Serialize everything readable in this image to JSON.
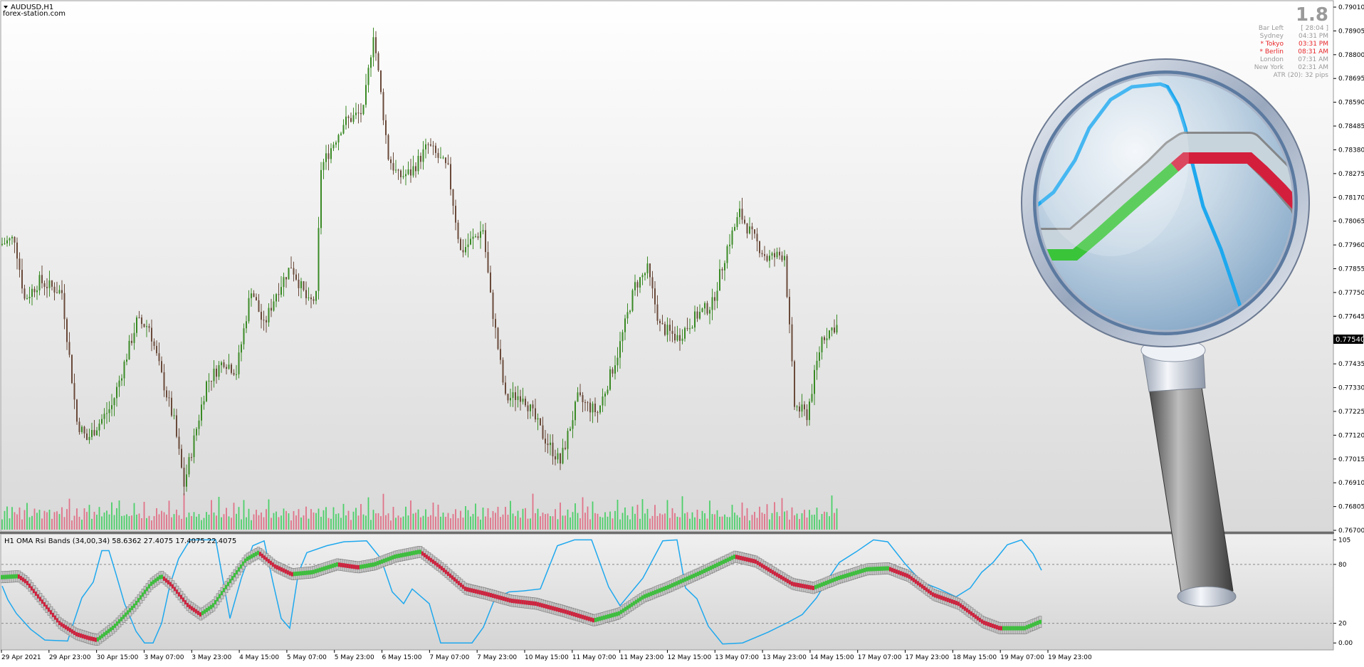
{
  "window": {
    "symbol_label": "AUDUSD,H1",
    "watermark": "forex-station.com"
  },
  "info_panel": {
    "big_value": "1.8",
    "rows": [
      {
        "label": "Bar Left",
        "value": "[ 28:04 ]",
        "color": "#9a9a9a"
      },
      {
        "label": "Sydney",
        "value": "04:31 PM",
        "color": "#9a9a9a"
      },
      {
        "label": "* Tokyo",
        "value": "03:31 PM",
        "color": "#e8262a"
      },
      {
        "label": "* Berlin",
        "value": "08:31 AM",
        "color": "#e8262a"
      },
      {
        "label": "London",
        "value": "07:31 AM",
        "color": "#9a9a9a"
      },
      {
        "label": "New York",
        "value": "02:31 AM",
        "color": "#9a9a9a"
      }
    ],
    "atr_text": "ATR (20): 32 pips"
  },
  "indicator": {
    "title": "H1 OMA Rsi Bands (34,00,34) 58.6362 27.4075 17.4075 22.4075"
  },
  "colors": {
    "bull_candle": "#3a8a25",
    "bear_candle": "#6a4a3a",
    "vol_up": "#33cc55",
    "vol_down": "#e0607a",
    "band_up": "#3ac43a",
    "band_down": "#d41f3c",
    "rsi_line": "#1ea8ee",
    "price_marker_bg": "#000000"
  },
  "chart_data": [
    {
      "type": "candlestick",
      "title": "AUDUSD,H1",
      "x_ticks": [
        "29 Apr 2021",
        "29 Apr 23:00",
        "30 Apr 15:00",
        "3 May 07:00",
        "3 May 23:00",
        "4 May 15:00",
        "5 May 07:00",
        "5 May 23:00",
        "6 May 15:00",
        "7 May 07:00",
        "7 May 23:00",
        "10 May 15:00",
        "11 May 07:00",
        "11 May 23:00",
        "12 May 15:00",
        "13 May 07:00",
        "13 May 23:00",
        "14 May 15:00",
        "17 May 07:00",
        "17 May 23:00",
        "18 May 15:00",
        "19 May 07:00",
        "19 May 23:00"
      ],
      "y_ticks": [
        "0.79010",
        "0.78905",
        "0.78800",
        "0.78695",
        "0.78590",
        "0.78485",
        "0.78380",
        "0.78275",
        "0.78170",
        "0.78065",
        "0.77960",
        "0.77855",
        "0.77750",
        "0.77645",
        "0.77540",
        "0.77435",
        "0.77330",
        "0.77225",
        "0.77120",
        "0.77015",
        "0.76910",
        "0.76805",
        "0.76700"
      ],
      "ylim": [
        0.767,
        0.7901
      ],
      "current_price": "0.77540",
      "anchors": [
        [
          0,
          0.7796
        ],
        [
          6,
          0.7799
        ],
        [
          10,
          0.7772
        ],
        [
          16,
          0.778
        ],
        [
          25,
          0.7775
        ],
        [
          31,
          0.7718
        ],
        [
          35,
          0.771
        ],
        [
          45,
          0.7725
        ],
        [
          55,
          0.7762
        ],
        [
          60,
          0.776
        ],
        [
          65,
          0.7738
        ],
        [
          70,
          0.7718
        ],
        [
          74,
          0.769
        ],
        [
          83,
          0.7735
        ],
        [
          90,
          0.7745
        ],
        [
          95,
          0.774
        ],
        [
          101,
          0.7777
        ],
        [
          106,
          0.776
        ],
        [
          111,
          0.7775
        ],
        [
          117,
          0.7787
        ],
        [
          124,
          0.777
        ],
        [
          127,
          0.7773
        ],
        [
          129,
          0.783
        ],
        [
          138,
          0.785
        ],
        [
          146,
          0.7855
        ],
        [
          150,
          0.789
        ],
        [
          156,
          0.7835
        ],
        [
          160,
          0.7826
        ],
        [
          165,
          0.7828
        ],
        [
          172,
          0.784
        ],
        [
          180,
          0.7829
        ],
        [
          185,
          0.7793
        ],
        [
          194,
          0.7803
        ],
        [
          197,
          0.7773
        ],
        [
          203,
          0.7728
        ],
        [
          210,
          0.773
        ],
        [
          218,
          0.7712
        ],
        [
          225,
          0.77
        ],
        [
          232,
          0.7728
        ],
        [
          240,
          0.7722
        ],
        [
          248,
          0.7748
        ],
        [
          255,
          0.7778
        ],
        [
          260,
          0.7785
        ],
        [
          265,
          0.776
        ],
        [
          272,
          0.7755
        ],
        [
          280,
          0.7765
        ],
        [
          286,
          0.777
        ],
        [
          292,
          0.7795
        ],
        [
          297,
          0.781
        ],
        [
          302,
          0.78
        ],
        [
          308,
          0.779
        ],
        [
          315,
          0.7792
        ],
        [
          319,
          0.7725
        ],
        [
          324,
          0.7721
        ],
        [
          330,
          0.7755
        ],
        [
          335,
          0.776
        ]
      ],
      "volume_pattern": [
        0.2,
        0.35,
        0.5,
        0.25,
        0.6,
        0.3,
        0.45,
        0.7,
        0.2,
        0.4,
        0.55,
        0.3,
        0.25,
        0.8,
        0.35,
        0.5,
        0.2,
        0.65,
        0.3,
        0.45
      ]
    },
    {
      "type": "line",
      "title": "H1 OMA Rsi Bands (34,00,34) 58.6362 27.4075 17.4075 22.4075",
      "y_ticks": [
        "105",
        "80",
        "20",
        "0.00"
      ],
      "ylim": [
        -2,
        106
      ],
      "levels": [
        80,
        20
      ],
      "series": [
        {
          "key": "oma_band",
          "points": [
            [
              0,
              67
            ],
            [
              8,
              68
            ],
            [
              12,
              62
            ],
            [
              20,
              41
            ],
            [
              28,
              20
            ],
            [
              36,
              9
            ],
            [
              42,
              5
            ],
            [
              46,
              3
            ],
            [
              54,
              16
            ],
            [
              64,
              38
            ],
            [
              72,
              60
            ],
            [
              77,
              68
            ],
            [
              82,
              59
            ],
            [
              90,
              38
            ],
            [
              96,
              29
            ],
            [
              102,
              38
            ],
            [
              110,
              62
            ],
            [
              118,
              85
            ],
            [
              124,
              92
            ],
            [
              132,
              78
            ],
            [
              140,
              70
            ],
            [
              150,
              72
            ],
            [
              162,
              80
            ],
            [
              172,
              77
            ],
            [
              180,
              80
            ],
            [
              190,
              88
            ],
            [
              202,
              93
            ],
            [
              212,
              77
            ],
            [
              224,
              55
            ],
            [
              234,
              50
            ],
            [
              246,
              43
            ],
            [
              258,
              40
            ],
            [
              272,
              32
            ],
            [
              286,
              23
            ],
            [
              298,
              30
            ],
            [
              310,
              47
            ],
            [
              322,
              57
            ],
            [
              338,
              72
            ],
            [
              354,
              88
            ],
            [
              364,
              83
            ],
            [
              374,
              70
            ],
            [
              382,
              60
            ],
            [
              392,
              56
            ],
            [
              404,
              66
            ],
            [
              418,
              75
            ],
            [
              428,
              76
            ],
            [
              438,
              68
            ],
            [
              450,
              49
            ],
            [
              462,
              40
            ],
            [
              474,
              21
            ],
            [
              482,
              15
            ],
            [
              494,
              15
            ],
            [
              502,
              22
            ]
          ]
        },
        {
          "key": "rsi",
          "points": [
            [
              0,
              58
            ],
            [
              4,
              44
            ],
            [
              10,
              30
            ],
            [
              20,
              14
            ],
            [
              30,
              3
            ],
            [
              46,
              2
            ],
            [
              50,
              20
            ],
            [
              56,
              46
            ],
            [
              64,
              62
            ],
            [
              70,
              94
            ],
            [
              75,
              94
            ],
            [
              80,
              70
            ],
            [
              86,
              40
            ],
            [
              94,
              12
            ],
            [
              100,
              0
            ],
            [
              106,
              0
            ],
            [
              112,
              20
            ],
            [
              118,
              60
            ],
            [
              124,
              86
            ],
            [
              132,
              105
            ],
            [
              140,
              105
            ],
            [
              150,
              105
            ],
            [
              156,
              57
            ],
            [
              160,
              25
            ],
            [
              168,
              66
            ],
            [
              176,
              99
            ],
            [
              184,
              104
            ],
            [
              190,
              63
            ],
            [
              196,
              25
            ],
            [
              202,
              15
            ],
            [
              208,
              71
            ],
            [
              214,
              92
            ],
            [
              228,
              99
            ],
            [
              240,
              103
            ],
            [
              256,
              104
            ],
            [
              266,
              86
            ],
            [
              274,
              52
            ],
            [
              282,
              40
            ],
            [
              288,
              55
            ],
            [
              300,
              40
            ],
            [
              308,
              0
            ],
            [
              330,
              0
            ],
            [
              338,
              16
            ],
            [
              346,
              45
            ],
            [
              356,
              52
            ],
            [
              366,
              53
            ],
            [
              378,
              55
            ],
            [
              390,
              99
            ],
            [
              402,
              105
            ],
            [
              414,
              105
            ],
            [
              426,
              57
            ],
            [
              434,
              38
            ],
            [
              450,
              66
            ],
            [
              464,
              104
            ],
            [
              474,
              105
            ],
            [
              480,
              56
            ],
            [
              488,
              45
            ],
            [
              496,
              17
            ],
            [
              506,
              -1
            ],
            [
              520,
              0
            ],
            [
              538,
              11
            ],
            [
              552,
              21
            ],
            [
              562,
              29
            ],
            [
              572,
              46
            ],
            [
              580,
              65
            ],
            [
              588,
              82
            ],
            [
              600,
              93
            ],
            [
              612,
              105
            ],
            [
              622,
              103
            ],
            [
              634,
              81
            ],
            [
              646,
              62
            ],
            [
              658,
              55
            ],
            [
              670,
              47
            ],
            [
              680,
              56
            ],
            [
              688,
              72
            ],
            [
              696,
              82
            ],
            [
              706,
              100
            ],
            [
              716,
              105
            ],
            [
              724,
              91
            ],
            [
              730,
              74
            ]
          ]
        }
      ]
    }
  ]
}
